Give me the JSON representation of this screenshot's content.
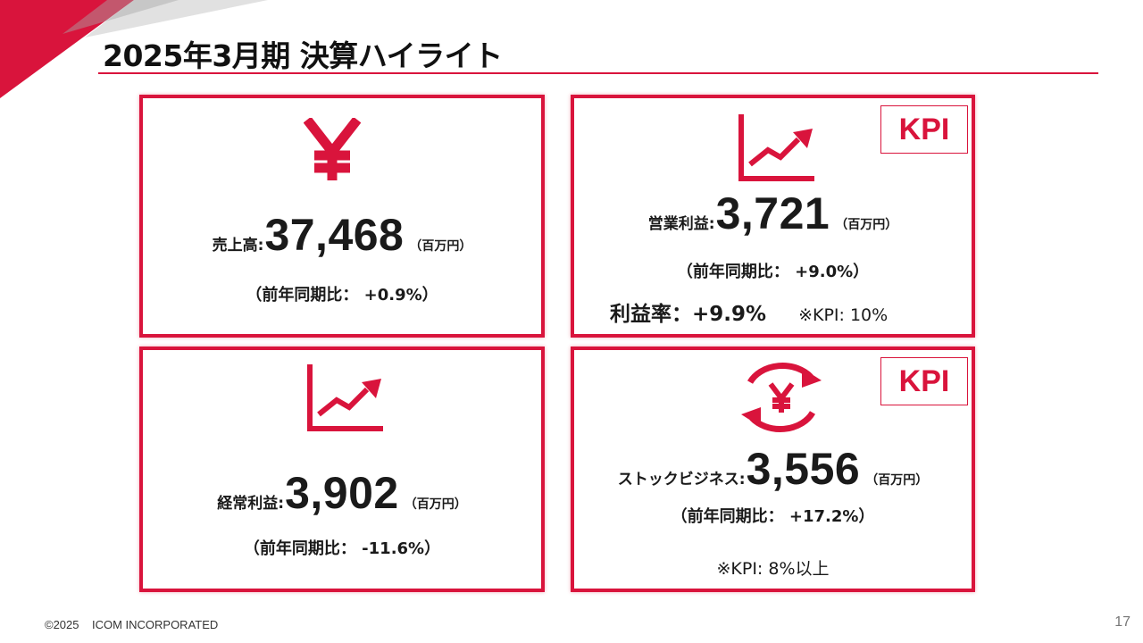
{
  "page": {
    "title": "2025年3月期 決算ハイライト",
    "copyright": "©2025",
    "company": "ICOM INCORPORATED",
    "page_number": "17"
  },
  "colors": {
    "accent": "#d9143c",
    "text": "#1a1a1a"
  },
  "cards": {
    "sales": {
      "icon": "yen-icon",
      "label": "売上高:",
      "value": "37,468",
      "unit": "（百万円）",
      "yoy": "（前年同期比： +0.9%）"
    },
    "operating_profit": {
      "icon": "rising-chart-icon",
      "badge": "KPI",
      "label": "営業利益:",
      "value": "3,721",
      "unit": "（百万円）",
      "yoy": "（前年同期比： +9.0%）",
      "margin": "利益率：+9.9%",
      "kpi_note": "※KPI: 10%"
    },
    "ordinary_profit": {
      "icon": "rising-chart-icon",
      "label": "経常利益:",
      "value": "3,902",
      "unit": "（百万円）",
      "yoy": "（前年同期比： -11.6%）"
    },
    "stock_business": {
      "icon": "recurring-yen-icon",
      "badge": "KPI",
      "label": "ストックビジネス:",
      "value": "3,556",
      "unit": "（百万円）",
      "yoy": "（前年同期比： +17.2%）",
      "kpi_note": "※KPI: 8%以上"
    }
  }
}
